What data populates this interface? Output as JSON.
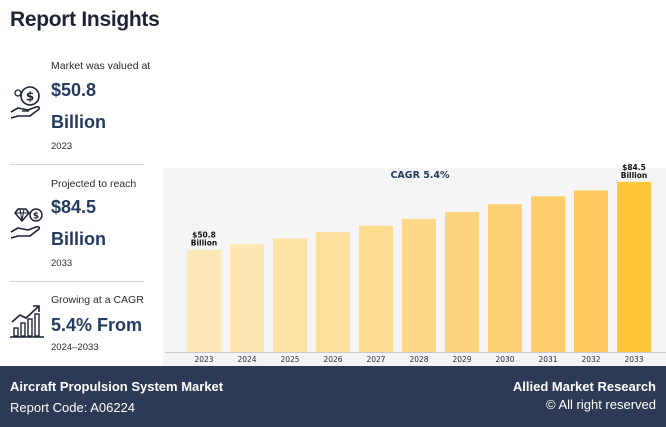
{
  "header": {
    "title": "Report Insights"
  },
  "stats": [
    {
      "label": "Market was valued at",
      "value": "$50.8",
      "unit": "Billion",
      "year": "2023",
      "icon": "money-hand-icon"
    },
    {
      "label": "Projected to reach",
      "value": "$84.5",
      "unit": "Billion",
      "year": "2033",
      "icon": "diamond-hand-icon"
    },
    {
      "label": "Growing at a CAGR",
      "value": "5.4% From",
      "year": "2024–2033",
      "icon": "growth-chart-icon"
    }
  ],
  "chart_data": {
    "type": "bar",
    "title": "CAGR 5.4%",
    "categories": [
      "2023",
      "2024",
      "2025",
      "2026",
      "2027",
      "2028",
      "2029",
      "2030",
      "2031",
      "2032",
      "2033"
    ],
    "values": [
      50.8,
      53.5,
      56.4,
      59.5,
      62.7,
      66.1,
      69.6,
      73.4,
      77.3,
      80.2,
      84.5
    ],
    "ylim": [
      0,
      90
    ],
    "annotations": [
      {
        "category": "2023",
        "lines": [
          "$50.8",
          "Billion"
        ]
      },
      {
        "category": "2033",
        "lines": [
          "$84.5",
          "Billion"
        ]
      }
    ],
    "colors": [
      "#fde9b8",
      "#fde6af",
      "#fde2a5",
      "#fddf9b",
      "#fddb91",
      "#fdd887",
      "#fdd47d",
      "#fdd073",
      "#fdcd69",
      "#fdc95f",
      "#fdc53a"
    ],
    "grid": false
  },
  "footer": {
    "market": "Aircraft Propulsion System Market",
    "report_code": "Report Code: A06224",
    "brand": "Allied Market Research",
    "rights": "© All right reserved"
  }
}
